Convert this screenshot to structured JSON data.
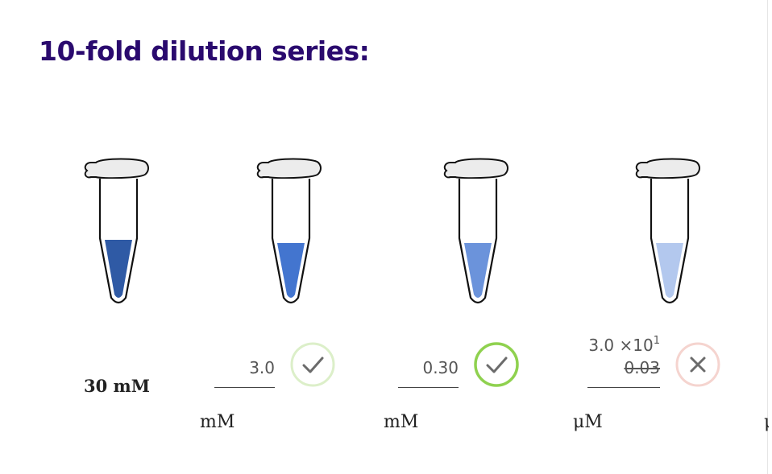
{
  "title": "10-fold dilution series:",
  "start_value": "30 mM",
  "tubes": [
    {
      "liquid_color": "#2f5aa5"
    },
    {
      "liquid_color": "#4375cf"
    },
    {
      "liquid_color": "#6b93db"
    },
    {
      "liquid_color": "#b3c8ee"
    }
  ],
  "answers": [
    {
      "value": "3.0",
      "unit": "mM",
      "status": "correct-faded"
    },
    {
      "value": "0.30",
      "unit": "mM",
      "status": "correct"
    },
    {
      "value": "0.03",
      "hint_base": "3.0 ×10",
      "hint_exp": "1",
      "unit": "μM",
      "status": "incorrect"
    }
  ],
  "next_unit_partial": "μ",
  "colors": {
    "title": "#2a0a6e",
    "correct": "#8fd14f",
    "correct_faded": "#dcefc9",
    "incorrect": "#f5d4cf",
    "icon_gray": "#6b6b6b"
  },
  "icons": {
    "correct": "checkmark-icon",
    "incorrect": "x-icon"
  }
}
